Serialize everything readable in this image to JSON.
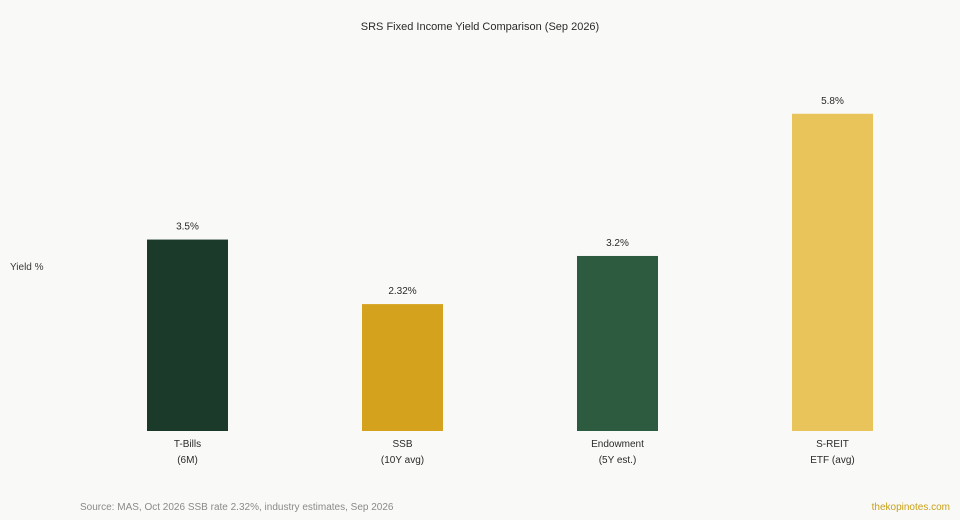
{
  "chart_data": {
    "type": "bar",
    "title": "SRS Fixed Income Yield Comparison (Sep 2026)",
    "ylabel": "Yield %",
    "xlabel": "",
    "categories": [
      [
        "T-Bills",
        "(6M)"
      ],
      [
        "SSB",
        "(10Y avg)"
      ],
      [
        "Endowment",
        "(5Y est.)"
      ],
      [
        "S-REIT",
        "ETF (avg)"
      ]
    ],
    "values": [
      3.5,
      2.32,
      3.2,
      5.8
    ],
    "data_labels": [
      "3.5%",
      "2.32%",
      "3.2%",
      "5.8%"
    ],
    "colors": [
      "#1b3a2a",
      "#d4a21c",
      "#2d5b3f",
      "#e8c45a"
    ],
    "ylim": [
      0,
      6.6
    ],
    "grid": false,
    "legend": "none"
  },
  "footer": {
    "source": "Source: MAS, Oct 2026 SSB rate 2.32%, industry estimates, Sep 2026",
    "brand": "thekopinotes.com"
  }
}
